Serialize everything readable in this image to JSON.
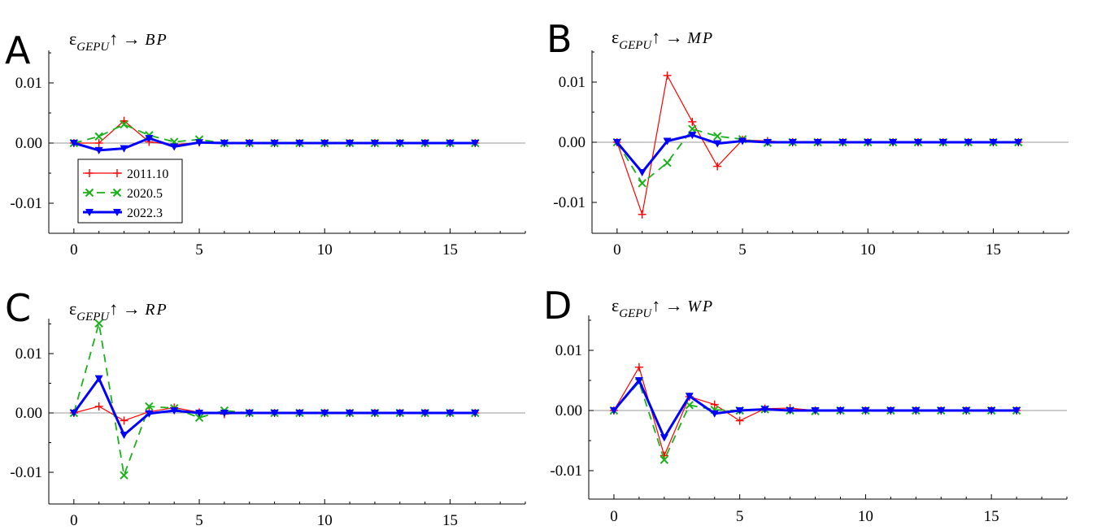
{
  "chart_data": [
    {
      "type": "line",
      "panel": "A",
      "title": {
        "eps": "ε",
        "sub": "GEPU",
        "arrow": "↑ →",
        "var": "BP"
      },
      "x": [
        0,
        1,
        2,
        3,
        4,
        5,
        6,
        7,
        8,
        9,
        10,
        11,
        12,
        13,
        14,
        15,
        16
      ],
      "xticks": [
        "0",
        "5",
        "10",
        "15"
      ],
      "yticks": [
        "0.01",
        "0.00",
        "-0.01"
      ],
      "xlim": [
        -1,
        18
      ],
      "ylim": [
        -0.0148,
        0.0158
      ],
      "series": [
        {
          "name": "2011.10",
          "values": [
            0,
            0,
            0.0037,
            0.0002,
            -0.0003,
            0.0001,
            0,
            0,
            0,
            0,
            0,
            0,
            0,
            0,
            0,
            0,
            0
          ]
        },
        {
          "name": "2020.5",
          "values": [
            0,
            0.0011,
            0.0031,
            0.0013,
            0.0002,
            0.0006,
            0,
            0,
            0,
            0,
            0,
            0,
            0,
            0,
            0,
            0,
            0
          ]
        },
        {
          "name": "2022.3",
          "values": [
            0,
            -0.0012,
            -0.0009,
            0.0008,
            -0.0006,
            0.0001,
            0,
            0,
            0,
            0,
            0,
            0,
            0,
            0,
            0,
            0,
            0
          ]
        }
      ]
    },
    {
      "type": "line",
      "panel": "B",
      "title": {
        "eps": "ε",
        "sub": "GEPU",
        "arrow": "↑ →",
        "var": "MP"
      },
      "x": [
        0,
        1,
        2,
        3,
        4,
        5,
        6,
        7,
        8,
        9,
        10,
        11,
        12,
        13,
        14,
        15,
        16
      ],
      "xticks": [
        "0",
        "5",
        "10",
        "15"
      ],
      "yticks": [
        "0.01",
        "0.00",
        "-0.01"
      ],
      "xlim": [
        -1,
        18
      ],
      "ylim": [
        -0.015,
        0.0155
      ],
      "series": [
        {
          "name": "2011.10",
          "values": [
            0,
            -0.012,
            0.0111,
            0.0034,
            -0.004,
            0.0004,
            0.0002,
            0,
            0,
            0,
            0,
            0,
            0,
            0,
            0,
            0,
            0
          ]
        },
        {
          "name": "2020.5",
          "values": [
            0,
            -0.0068,
            -0.0034,
            0.0022,
            0.001,
            0.0005,
            -0.0001,
            0,
            0,
            0,
            0,
            0,
            0,
            0,
            0,
            0,
            0
          ]
        },
        {
          "name": "2022.3",
          "values": [
            0,
            -0.005,
            0.0002,
            0.0012,
            -0.0002,
            0.0002,
            0,
            0,
            0,
            0,
            0,
            0,
            0,
            0,
            0,
            0,
            0
          ]
        }
      ]
    },
    {
      "type": "line",
      "panel": "C",
      "title": {
        "eps": "ε",
        "sub": "GEPU",
        "arrow": "↑ →",
        "var": "RP"
      },
      "x": [
        0,
        1,
        2,
        3,
        4,
        5,
        6,
        7,
        8,
        9,
        10,
        11,
        12,
        13,
        14,
        15,
        16
      ],
      "xticks": [
        "0",
        "5",
        "10",
        "15"
      ],
      "yticks": [
        "0.01",
        "0.00",
        "-0.01"
      ],
      "xlim": [
        -1,
        18
      ],
      "ylim": [
        -0.0148,
        0.0162
      ],
      "series": [
        {
          "name": "2011.10",
          "values": [
            0,
            0.0011,
            -0.0013,
            0.0002,
            0.0009,
            0.0001,
            -0.0002,
            0,
            0,
            0,
            0,
            0,
            0,
            0,
            0,
            0,
            0
          ]
        },
        {
          "name": "2020.5",
          "values": [
            0,
            0.0151,
            -0.0105,
            0.0011,
            0.0008,
            -0.0008,
            0.0004,
            0,
            0,
            0,
            0,
            0,
            0,
            0,
            0,
            0,
            0
          ]
        },
        {
          "name": "2022.3",
          "values": [
            0,
            0.0058,
            -0.0037,
            -0.0001,
            0.0004,
            0,
            0,
            0,
            0,
            0,
            0,
            0,
            0,
            0,
            0,
            0,
            0
          ]
        }
      ]
    },
    {
      "type": "line",
      "panel": "D",
      "title": {
        "eps": "ε",
        "sub": "GEPU",
        "arrow": "↑ →",
        "var": "WP"
      },
      "x": [
        0,
        1,
        2,
        3,
        4,
        5,
        6,
        7,
        8,
        9,
        10,
        11,
        12,
        13,
        14,
        15,
        16
      ],
      "xticks": [
        "0",
        "5",
        "10",
        "15"
      ],
      "yticks": [
        "0.01",
        "0.00",
        "-0.01"
      ],
      "xlim": [
        -1,
        18
      ],
      "ylim": [
        -0.0148,
        0.016
      ],
      "series": [
        {
          "name": "2011.10",
          "values": [
            0,
            0.0072,
            -0.0075,
            0.0023,
            0.001,
            -0.0017,
            0.0003,
            0.0004,
            0,
            0,
            0,
            0,
            0,
            0,
            0,
            0,
            0
          ]
        },
        {
          "name": "2020.5",
          "values": [
            0,
            0.0047,
            -0.0082,
            0.0009,
            0.0001,
            0,
            0.0002,
            0,
            -0.0001,
            0,
            0,
            0,
            0,
            0,
            0,
            0,
            0
          ]
        },
        {
          "name": "2022.3",
          "values": [
            0,
            0.005,
            -0.0045,
            0.0024,
            -0.0005,
            0,
            0.0002,
            0,
            0,
            0,
            0,
            0,
            0,
            0,
            0,
            0,
            0
          ]
        }
      ]
    }
  ],
  "legend": {
    "entries": [
      {
        "label": "2011.10",
        "color": "#ff0000",
        "marker": "plus"
      },
      {
        "label": "2020.5",
        "color": "#00b400",
        "marker": "x"
      },
      {
        "label": "2022.3",
        "color": "#0000ff",
        "marker": "triangle-down"
      }
    ]
  },
  "colors": {
    "red": "#ff0000",
    "green": "#1ab11a",
    "blue": "#0000ff",
    "axis": "#000000",
    "zero": "#999999"
  }
}
